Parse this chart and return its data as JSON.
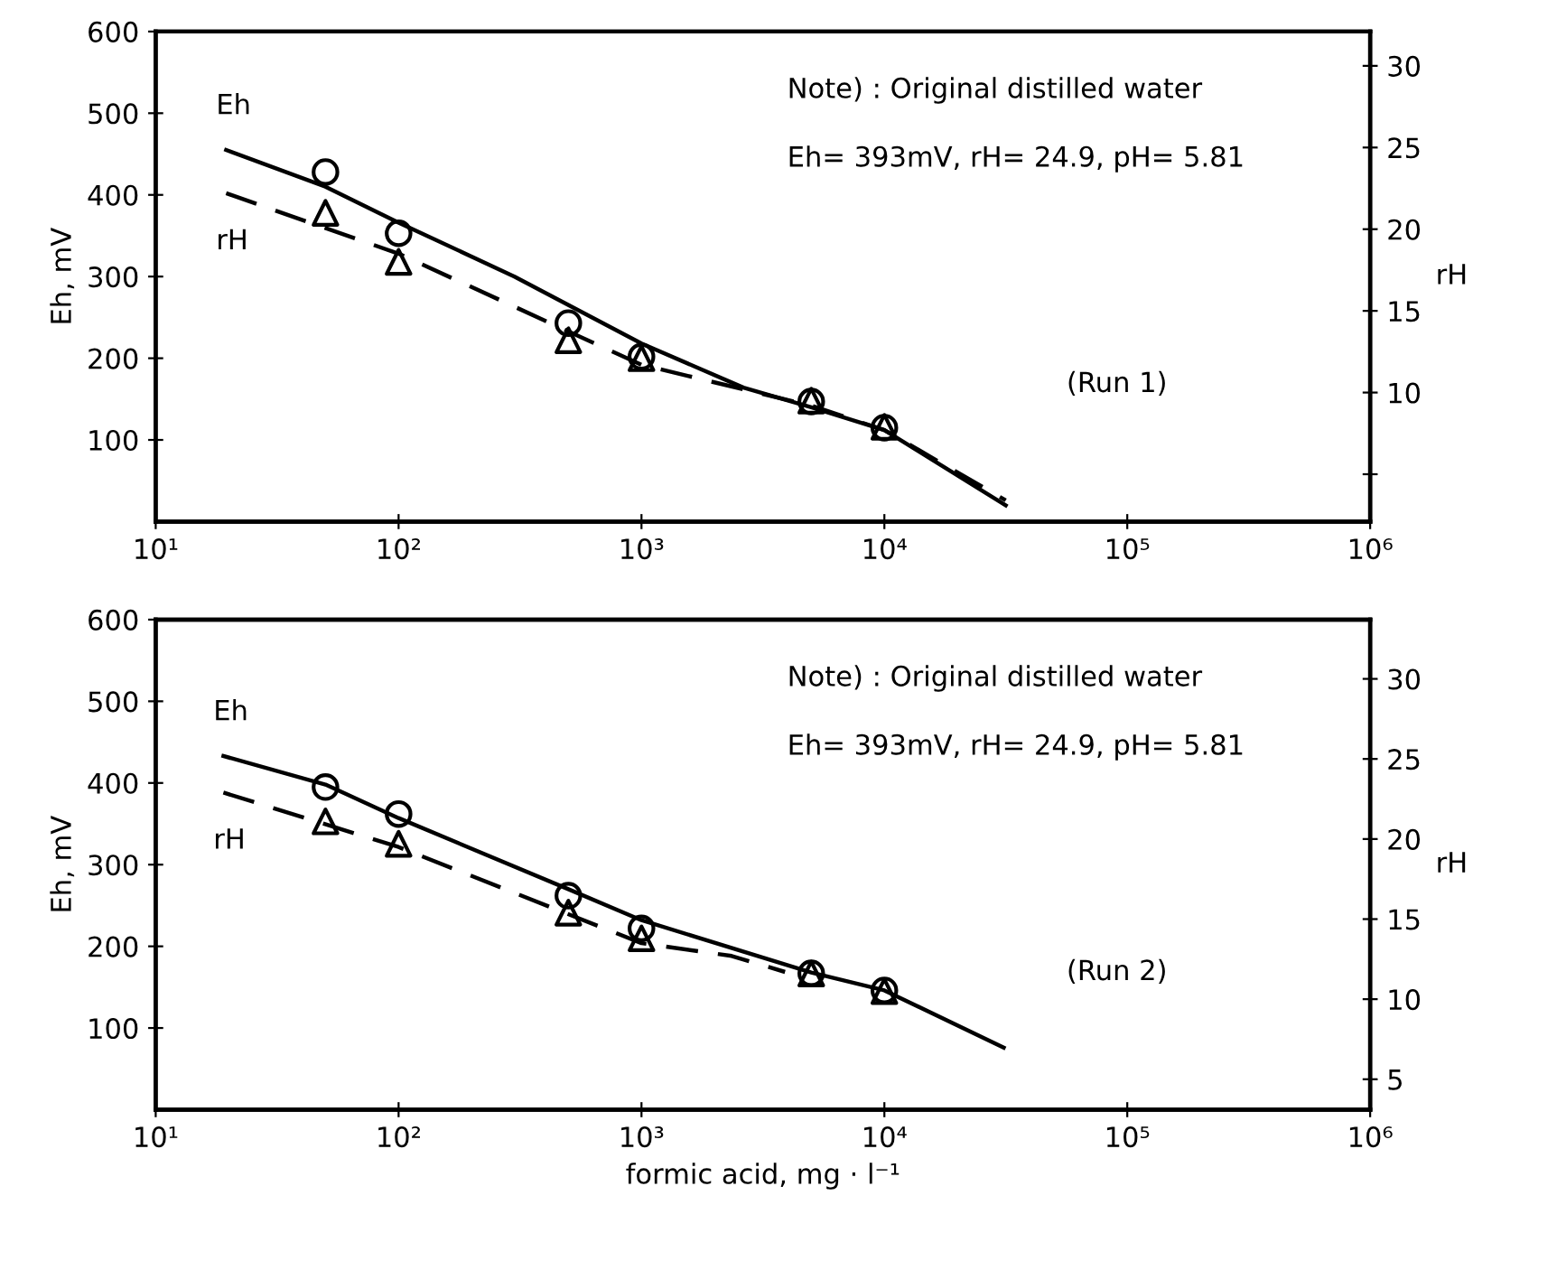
{
  "chart_data": [
    {
      "type": "line",
      "ylabel": "Eh, mV",
      "y2label": "rH",
      "annotations": [
        "Note) : Original distilled water",
        "Eh= 393mV, rH= 24.9, pH= 5.81",
        "(Run 1)"
      ],
      "log": "x",
      "xlim": [
        10,
        1000000
      ],
      "xticks": [
        {
          "value": 10,
          "label": "10¹"
        },
        {
          "value": 100,
          "label": "10²"
        },
        {
          "value": 1000,
          "label": "10³"
        },
        {
          "value": 10000,
          "label": "10⁴"
        },
        {
          "value": 100000,
          "label": "10⁵"
        },
        {
          "value": 1000000,
          "label": "10⁶"
        }
      ],
      "ylim": [
        0,
        600
      ],
      "yticks": [
        100,
        200,
        300,
        400,
        500,
        600
      ],
      "y2lim": [
        2.1,
        32.1
      ],
      "y2ticks": [
        {
          "value": 5,
          "label": null
        },
        10,
        15,
        20,
        25,
        30
      ],
      "grid": false,
      "legend": false,
      "series": [
        {
          "name": "Eh",
          "line_style": "solid",
          "color": "#000000",
          "x": [
            19.5,
            50,
            100,
            300,
            1000,
            2630,
            5000,
            10000,
            31600
          ],
          "values": [
            455,
            410,
            366,
            300,
            218,
            164,
            140,
            112,
            20
          ]
        },
        {
          "type": "scatter",
          "marker": "circle",
          "color": "#000000",
          "x": [
            50,
            100,
            500,
            1000,
            5000,
            10000
          ],
          "values": [
            428,
            353,
            243,
            202,
            147,
            115
          ]
        },
        {
          "name": "rH",
          "line_style": "dashed",
          "axis": "y2",
          "color": "#000000",
          "x": [
            19.5,
            100,
            1000,
            5000,
            10000,
            31600
          ],
          "values": [
            22.2,
            18.5,
            11.7,
            9.2,
            7.7,
            3.4
          ]
        },
        {
          "type": "scatter",
          "marker": "triangle",
          "axis": "y2",
          "color": "#000000",
          "x": [
            50,
            100,
            500,
            1000,
            5000,
            10000
          ],
          "values": [
            21.0,
            18.0,
            13.2,
            12.1,
            9.5,
            7.9
          ]
        }
      ]
    },
    {
      "type": "line",
      "xlabel": "formic acid, mg · l⁻¹",
      "ylabel": "Eh, mV",
      "y2label": "rH",
      "annotations": [
        "Note) : Original distilled water",
        "Eh= 393mV, rH= 24.9, pH= 5.81",
        "(Run 2)"
      ],
      "log": "x",
      "xlim": [
        10,
        1000000
      ],
      "xticks": [
        {
          "value": 10,
          "label": "10¹"
        },
        {
          "value": 100,
          "label": "10²"
        },
        {
          "value": 1000,
          "label": "10³"
        },
        {
          "value": 10000,
          "label": "10⁴"
        },
        {
          "value": 100000,
          "label": "10⁵"
        },
        {
          "value": 1000000,
          "label": "10⁶"
        }
      ],
      "ylim": [
        0,
        600
      ],
      "yticks": [
        100,
        200,
        300,
        400,
        500,
        600
      ],
      "y2lim": [
        3.1,
        33.7
      ],
      "y2ticks": [
        5,
        10,
        15,
        20,
        25,
        30
      ],
      "grid": false,
      "legend": false,
      "series": [
        {
          "name": "Eh",
          "line_style": "solid",
          "color": "#000000",
          "x": [
            19,
            50,
            100,
            500,
            1000,
            5000,
            10000,
            31000
          ],
          "values": [
            433,
            398,
            357,
            270,
            232,
            168,
            146,
            76
          ]
        },
        {
          "type": "scatter",
          "marker": "circle",
          "color": "#000000",
          "x": [
            50,
            100,
            500,
            1000,
            5000,
            10000
          ],
          "values": [
            395,
            362,
            262,
            222,
            167,
            146
          ]
        },
        {
          "name": "rH",
          "line_style": "dashed",
          "axis": "y2",
          "color": "#000000",
          "x": [
            19,
            100,
            1000,
            2350,
            3900
          ],
          "values": [
            22.9,
            19.5,
            13.5,
            12.7,
            11.7
          ]
        },
        {
          "type": "scatter",
          "marker": "triangle",
          "axis": "y2",
          "color": "#000000",
          "x": [
            50,
            100,
            500,
            1000,
            5000,
            10000
          ],
          "values": [
            21.1,
            19.7,
            15.4,
            13.8,
            11.6,
            10.5
          ]
        }
      ]
    }
  ]
}
